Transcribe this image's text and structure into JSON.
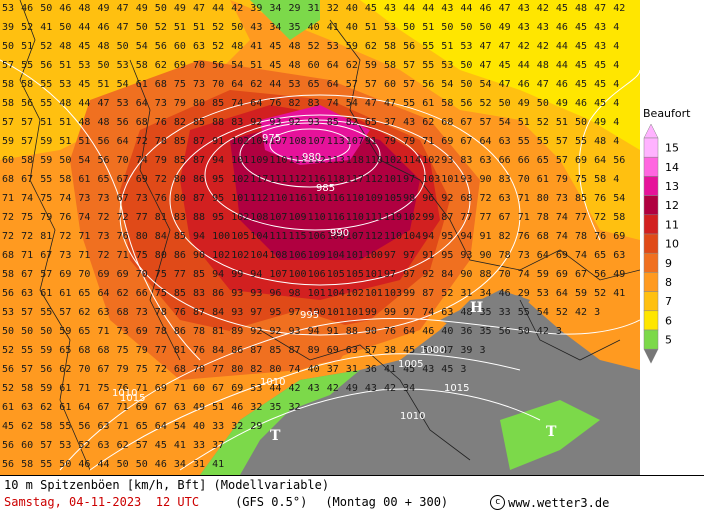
{
  "title": "10 m Spitzenböen [km/h, Bft] (Modellvariable)",
  "datetime": "Samstag, 04-11-2023  12 UTC",
  "model": "(GFS 0.5°)",
  "run": "(Montag 00 + 300)",
  "credit": "www.wetter3.de",
  "legend": {
    "title": "Beaufort",
    "levels": [
      {
        "label": "15",
        "color": "#ffb3ff"
      },
      {
        "label": "14",
        "color": "#ff66e0"
      },
      {
        "label": "13",
        "color": "#e6129a"
      },
      {
        "label": "12",
        "color": "#b00040"
      },
      {
        "label": "11",
        "color": "#d22020"
      },
      {
        "label": "10",
        "color": "#e04a18"
      },
      {
        "label": "9",
        "color": "#f07020"
      },
      {
        "label": "8",
        "color": "#ff9a20"
      },
      {
        "label": "7",
        "color": "#ffc010"
      },
      {
        "label": "6",
        "color": "#ffe600"
      },
      {
        "label": "5",
        "color": "#7cd94a"
      }
    ],
    "below_color": "#777777"
  },
  "map": {
    "land_low_wind_color": "#7f7f7f",
    "isobars": [
      "975",
      "980",
      "985",
      "990",
      "995",
      "1000",
      "1005",
      "1010",
      "1015"
    ],
    "pressure_systems": [
      {
        "type": "high",
        "label": "H"
      },
      {
        "type": "trough",
        "label": "T"
      },
      {
        "type": "trough",
        "label": "T"
      }
    ],
    "grid_rows": [
      "53 46 50 46 48 49 47 49 50 49 47 44 42 39 34 29 31 32 40 45 43 44 44 43 44 46 47 43 42 45 48 47 42 4",
      "39 52 41 50 44 46 47 50 52 51 51 52 50 43 34 35 40 41 40 51 53 50 51 50 50 50 49 43 43 46 45 43 4",
      "50 51 52 48 45 48 50 54 56 60 63 52 48 41 45 48 52 53 59 62 58 56 55 51 53 47 47 42 42 44 45 43 4",
      "57 55 56 51 53 50 53 58 62 69 70 56 54 51 45 48 60 64 62 59 58 57 55 53 50 47 45 44 48 44 45 45 4",
      "58 58 55 53 45 51 54 61 68 75 73 70 64 62 44 53 65 64 57 57 60 57 56 54 50 54 47 46 47 46 45 45 4",
      "58 56 55 48 44 47 53 64 73 79 80 85 74 64 76 82 83 74 54 47 47 55 61 58 56 52 50 49 50 49 46 45 4",
      "57 57 51 51 48 48 56 68 76 82 85 88 83 92 93 92 93 85 82 65 37 43 62 68 67 57 54 51 52 51 50 49 4",
      "59 57 59 51 51 56 64 72 78 85 87 91 102 104 107 108 107 113 107 91 79 79 71 69 67 64 63 55 55 57 55 48 4",
      "60 58 59 50 54 56 70 74 79 85 87 94 101 109 110 111 112 113 118 110 102 114 102 93 83 63 66 66 65 57 69 64 56 4",
      "68 67 55 58 61 65 67 69 72 80 86 95 102 117 111 112 116 118 117 112 101 97 103 101 93 90 83 70 61 79 75 58 4",
      "71 74 75 74 73 73 67 73 76 80 87 95 101 112 110 116 110 116 110 109 105 98 96 92 68 72 63 71 80 73 85 76 54 4",
      "72 75 79 76 74 72 72 77 81 83 88 95 102 108 107 109 110 116 110 111 119 102 99 87 77 77 67 71 78 74 77 72 58 3",
      "72 72 81 72 71 73 76 80 84 85 94 100 105 104 111 115 106 100 107 112 110 104 94 95 94 91 82 76 68 74 78 76 69 3",
      "68 71 67 73 71 72 71 75 80 86 90 102 102 104 108 106 109 104 101 100 97 97 91 95 93 90 78 73 64 69 74 65 63 3",
      "58 67 57 69 70 69 69 70 75 77 85 94 99 94 107 100 106 105 105 101 97 97 92 84 90 88 70 74 59 69 67 56 49 3",
      "56 63 61 61 65 64 62 66 75 85 83 86 93 93 96 98 101 104 102 101 103 99 87 52 31 34 46 29 53 64 59 52 41 3",
      "53 57 55 57 62 63 68 73 78 76 87 84 93 97 95 97 100 101 101 99 99 97 74 63 48 35 33 55 54 52 42 3",
      "50 50 50 59 65 71 73 69 78 86 78 81 89 92 92 93 94 91 88 90 76 64 46 40 36 35 56 50 42 3",
      "52 55 59 65 68 68 75 79 77 81 76 84 86 87 85 87 89 69 63 57 38 45 52 47 39 3",
      "56 57 56 62 70 67 79 75 72 68 70 77 80 82 80 74 40 37 31 36 41 45 43 45 3",
      "52 58 59 61 71 75 76 71 69 71 60 67 69 53 44 42 43 42 49 43 42 34",
      "61 63 62 61 64 67 71 69 67 63 49 51 46 32 35 32",
      "45 62 58 55 56 63 71 65 64 54 40 33 32 29",
      "56 60 57 53 52 63 62 57 45 41 33 37",
      "56 58 55 50 46 44 50 50 46 34 31 41"
    ]
  }
}
